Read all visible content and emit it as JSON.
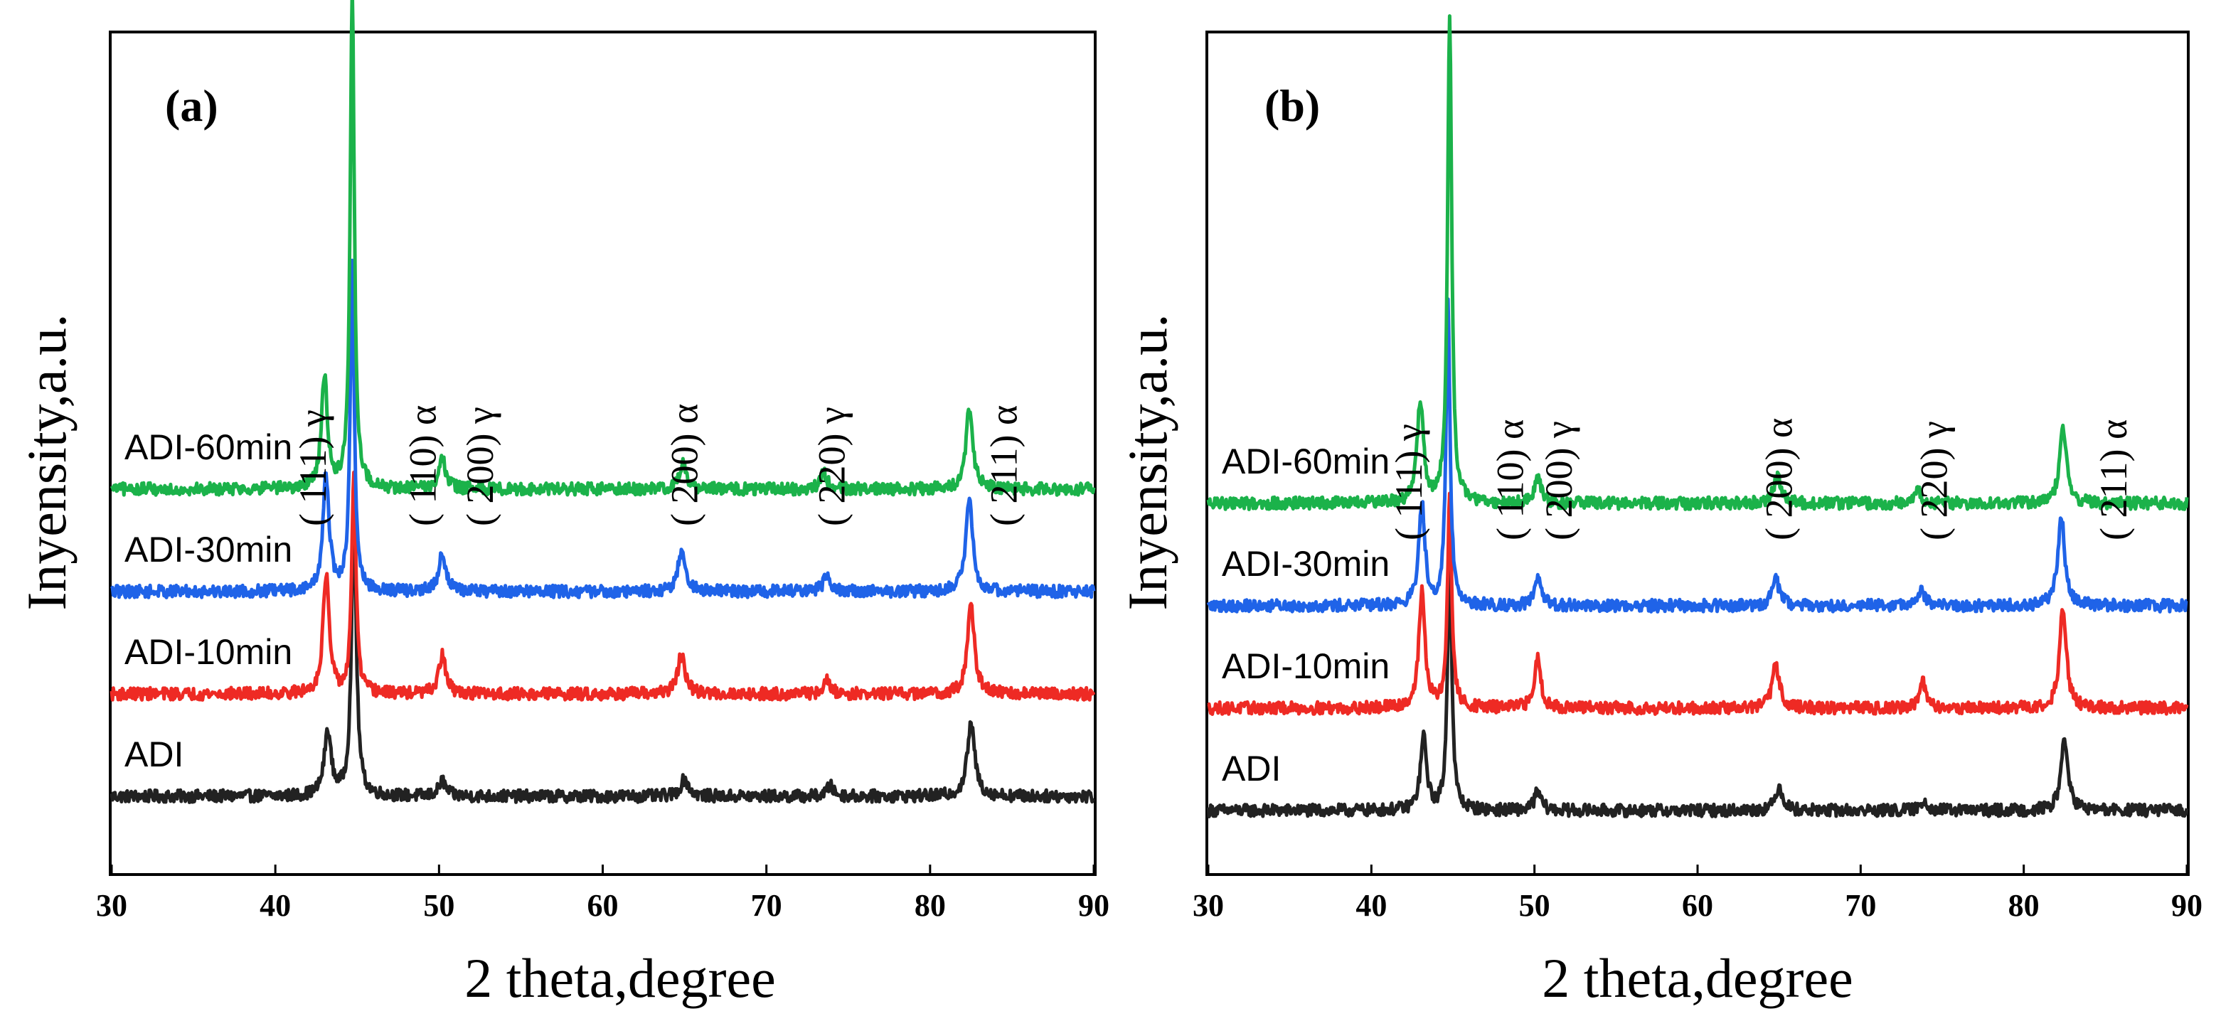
{
  "chart_data": [
    {
      "type": "line",
      "panel_label": "(a)",
      "xlabel": "2 theta,degree",
      "ylabel": "Inyensity,a.u.",
      "xlim": [
        30,
        90
      ],
      "xticks": [
        30,
        40,
        50,
        60,
        70,
        80,
        90
      ],
      "grid": false,
      "series": [
        {
          "name": "ADI",
          "color": "#222222",
          "baseline": 0.0,
          "noise": 0.012,
          "peaks": [
            [
              43.2,
              0.75,
              0.5
            ],
            [
              44.8,
              3.3,
              0.35
            ],
            [
              50.2,
              0.18,
              0.5
            ],
            [
              65.0,
              0.2,
              0.6
            ],
            [
              73.9,
              0.12,
              0.5
            ],
            [
              82.5,
              0.85,
              0.55
            ]
          ]
        },
        {
          "name": "ADI-10min",
          "color": "#ee2a24",
          "baseline": 1.2,
          "noise": 0.012,
          "peaks": [
            [
              43.1,
              1.4,
              0.45
            ],
            [
              44.8,
              2.6,
              0.3
            ],
            [
              50.2,
              0.45,
              0.5
            ],
            [
              64.8,
              0.45,
              0.55
            ],
            [
              73.7,
              0.15,
              0.5
            ],
            [
              82.5,
              1.05,
              0.5
            ]
          ]
        },
        {
          "name": "ADI-30min",
          "color": "#1f63e8",
          "baseline": 2.4,
          "noise": 0.012,
          "peaks": [
            [
              43.1,
              1.35,
              0.45
            ],
            [
              44.7,
              3.8,
              0.3
            ],
            [
              50.2,
              0.45,
              0.5
            ],
            [
              64.8,
              0.45,
              0.55
            ],
            [
              73.7,
              0.2,
              0.5
            ],
            [
              82.4,
              1.1,
              0.5
            ]
          ]
        },
        {
          "name": "ADI-60min",
          "color": "#1bb24a",
          "baseline": 3.6,
          "noise": 0.012,
          "peaks": [
            [
              43.0,
              1.3,
              0.45
            ],
            [
              44.7,
              5.8,
              0.3
            ],
            [
              50.2,
              0.35,
              0.5
            ],
            [
              64.9,
              0.3,
              0.55
            ],
            [
              73.5,
              0.2,
              0.5
            ],
            [
              82.4,
              0.95,
              0.5
            ]
          ]
        }
      ],
      "peak_labels": [
        {
          "text": "( 111) γ",
          "x": 42.3
        },
        {
          "text": "( 110) α",
          "x": 49.0
        },
        {
          "text": "( 200) γ",
          "x": 52.5
        },
        {
          "text": "( 200) α",
          "x": 65.0
        },
        {
          "text": "( 220) γ",
          "x": 74.0
        },
        {
          "text": "( 211) α",
          "x": 84.5
        }
      ]
    },
    {
      "type": "line",
      "panel_label": "(b)",
      "xlabel": "2 theta,degree",
      "ylabel": "Inyensity,a.u.",
      "xlim": [
        30,
        90
      ],
      "xticks": [
        30,
        40,
        50,
        60,
        70,
        80,
        90
      ],
      "grid": false,
      "series": [
        {
          "name": "ADI",
          "color": "#222222",
          "baseline": 0.0,
          "noise": 0.012,
          "peaks": [
            [
              43.2,
              0.85,
              0.45
            ],
            [
              44.8,
              3.1,
              0.3
            ],
            [
              50.2,
              0.22,
              0.5
            ],
            [
              65.0,
              0.28,
              0.55
            ],
            [
              73.9,
              0.12,
              0.5
            ],
            [
              82.5,
              0.85,
              0.5
            ]
          ]
        },
        {
          "name": "ADI-10min",
          "color": "#ee2a24",
          "baseline": 1.2,
          "noise": 0.012,
          "peaks": [
            [
              43.1,
              1.35,
              0.45
            ],
            [
              44.8,
              2.5,
              0.3
            ],
            [
              50.2,
              0.6,
              0.45
            ],
            [
              64.8,
              0.5,
              0.55
            ],
            [
              73.8,
              0.3,
              0.5
            ],
            [
              82.4,
              1.15,
              0.5
            ]
          ]
        },
        {
          "name": "ADI-30min",
          "color": "#1f63e8",
          "baseline": 2.4,
          "noise": 0.012,
          "peaks": [
            [
              43.1,
              1.2,
              0.45
            ],
            [
              44.7,
              3.5,
              0.3
            ],
            [
              50.2,
              0.3,
              0.5
            ],
            [
              64.8,
              0.3,
              0.55
            ],
            [
              73.7,
              0.18,
              0.5
            ],
            [
              82.3,
              1.05,
              0.5
            ]
          ]
        },
        {
          "name": "ADI-60min",
          "color": "#1bb24a",
          "baseline": 3.6,
          "noise": 0.012,
          "peaks": [
            [
              43.0,
              1.2,
              0.45
            ],
            [
              44.8,
              5.7,
              0.3
            ],
            [
              50.2,
              0.3,
              0.5
            ],
            [
              64.9,
              0.3,
              0.55
            ],
            [
              73.5,
              0.15,
              0.5
            ],
            [
              82.4,
              0.9,
              0.5
            ]
          ]
        }
      ],
      "peak_labels": [
        {
          "text": "( 111) γ",
          "x": 42.3
        },
        {
          "text": "( 110) α",
          "x": 48.5
        },
        {
          "text": "( 200) γ",
          "x": 51.5
        },
        {
          "text": "( 200) α",
          "x": 65.0
        },
        {
          "text": "( 220) γ",
          "x": 74.5
        },
        {
          "text": "( 211) α",
          "x": 85.5
        }
      ]
    }
  ]
}
